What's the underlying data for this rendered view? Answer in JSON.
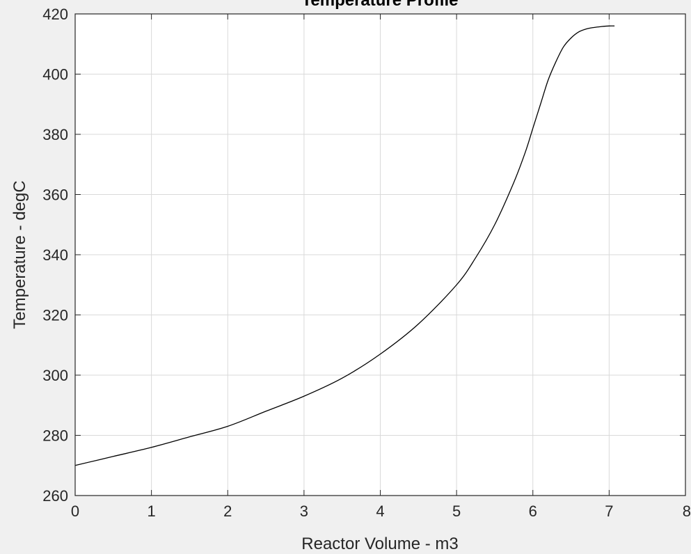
{
  "chart_data": {
    "type": "line",
    "title": "Temperature Profile",
    "xlabel": "Reactor Volume - m3",
    "ylabel": "Temperature - degC",
    "xlim": [
      0,
      8
    ],
    "ylim": [
      260,
      420
    ],
    "xticks": [
      0,
      1,
      2,
      3,
      4,
      5,
      6,
      7,
      8
    ],
    "yticks": [
      260,
      280,
      300,
      320,
      340,
      360,
      380,
      400,
      420
    ],
    "grid": true,
    "series": [
      {
        "color": "#000000",
        "x": [
          0,
          0.5,
          1.0,
          1.5,
          2.0,
          2.5,
          3.0,
          3.5,
          4.0,
          4.5,
          5.0,
          5.25,
          5.5,
          5.75,
          5.9,
          6.0,
          6.1,
          6.2,
          6.3,
          6.4,
          6.5,
          6.6,
          6.7,
          6.8,
          6.9,
          7.0,
          7.07
        ],
        "y": [
          270,
          273,
          276,
          279.5,
          283,
          288,
          293,
          299,
          307,
          317,
          330,
          339,
          350,
          364,
          374,
          382,
          390,
          398,
          404,
          409,
          412,
          414,
          415,
          415.5,
          415.8,
          416,
          416
        ]
      }
    ]
  }
}
